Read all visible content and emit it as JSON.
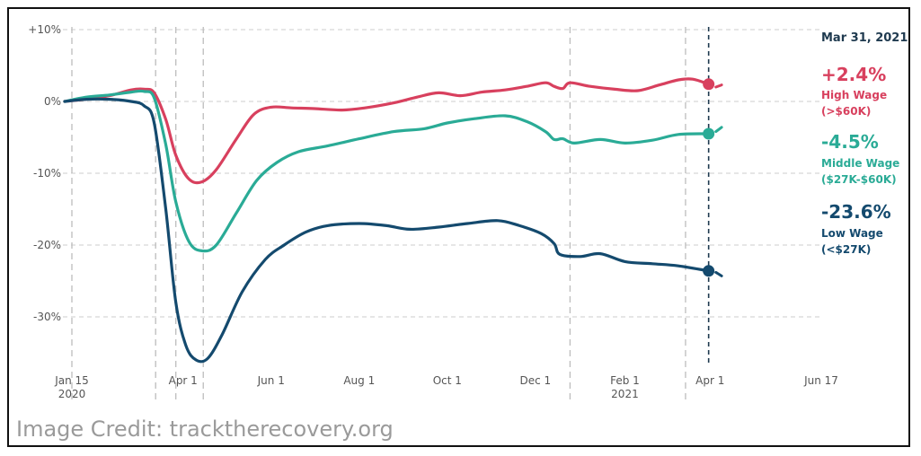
{
  "chart_data": {
    "type": "line",
    "y_unit": "% change in employment",
    "ylim": [
      -36.5,
      10
    ],
    "y_ticks": [
      "+10%",
      "0%",
      "-10%",
      "-20%",
      "-30%"
    ],
    "y_tick_values": [
      10,
      0,
      -10,
      -20,
      -30
    ],
    "x_ticks": [
      {
        "date": "2020-01-15",
        "label": "Jan 15",
        "label2": "2020"
      },
      {
        "date": "2020-04-01",
        "label": "Apr 1",
        "label2": ""
      },
      {
        "date": "2020-06-01",
        "label": "Jun 1",
        "label2": ""
      },
      {
        "date": "2020-08-01",
        "label": "Aug 1",
        "label2": ""
      },
      {
        "date": "2020-10-01",
        "label": "Oct 1",
        "label2": ""
      },
      {
        "date": "2020-12-01",
        "label": "Dec 1",
        "label2": ""
      },
      {
        "date": "2021-02-01",
        "label": "Feb 1",
        "label2": "2021"
      },
      {
        "date": "2021-04-01",
        "label": "Apr 1",
        "label2": ""
      },
      {
        "date": "2021-06-17",
        "label": "Jun 17",
        "label2": ""
      }
    ],
    "x_range": [
      "2020-01-15",
      "2021-06-17"
    ],
    "event_lines": [
      "2020-01-15",
      "2020-03-13",
      "2020-03-27",
      "2020-04-15",
      "2020-12-25",
      "2021-03-15"
    ],
    "marker_date": "2021-03-31",
    "marker_label": "Mar 31, 2021",
    "grid": true,
    "series": [
      {
        "name": "High Wage",
        "sub": "(>$60K)",
        "value_label": "+2.4%",
        "color": "#d8405e",
        "points": [
          [
            "2020-01-10",
            0
          ],
          [
            "2020-01-25",
            0.3
          ],
          [
            "2020-02-10",
            0.8
          ],
          [
            "2020-02-25",
            1.6
          ],
          [
            "2020-03-05",
            1.7
          ],
          [
            "2020-03-12",
            1.2
          ],
          [
            "2020-03-20",
            -2.5
          ],
          [
            "2020-03-27",
            -7.5
          ],
          [
            "2020-04-05",
            -10.8
          ],
          [
            "2020-04-14",
            -11.2
          ],
          [
            "2020-04-24",
            -9.5
          ],
          [
            "2020-05-08",
            -5.2
          ],
          [
            "2020-05-20",
            -1.8
          ],
          [
            "2020-06-01",
            -0.8
          ],
          [
            "2020-06-15",
            -0.9
          ],
          [
            "2020-07-01",
            -1.0
          ],
          [
            "2020-07-20",
            -1.2
          ],
          [
            "2020-08-05",
            -0.9
          ],
          [
            "2020-08-25",
            -0.2
          ],
          [
            "2020-09-10",
            0.6
          ],
          [
            "2020-09-25",
            1.2
          ],
          [
            "2020-10-10",
            0.8
          ],
          [
            "2020-10-25",
            1.3
          ],
          [
            "2020-11-10",
            1.6
          ],
          [
            "2020-11-25",
            2.1
          ],
          [
            "2020-12-08",
            2.6
          ],
          [
            "2020-12-14",
            2.1
          ],
          [
            "2020-12-20",
            1.8
          ],
          [
            "2020-12-25",
            2.6
          ],
          [
            "2021-01-08",
            2.1
          ],
          [
            "2021-01-25",
            1.7
          ],
          [
            "2021-02-10",
            1.5
          ],
          [
            "2021-02-25",
            2.3
          ],
          [
            "2021-03-10",
            3.0
          ],
          [
            "2021-03-20",
            3.1
          ],
          [
            "2021-03-31",
            2.4
          ]
        ],
        "tail": [
          [
            "2021-04-05",
            2.0
          ],
          [
            "2021-04-09",
            2.3
          ]
        ]
      },
      {
        "name": "Middle Wage",
        "sub": "($27K-$60K)",
        "value_label": "-4.5%",
        "color": "#2aab96",
        "points": [
          [
            "2020-01-10",
            0
          ],
          [
            "2020-01-25",
            0.6
          ],
          [
            "2020-02-10",
            0.9
          ],
          [
            "2020-02-25",
            1.3
          ],
          [
            "2020-03-05",
            1.4
          ],
          [
            "2020-03-12",
            0.5
          ],
          [
            "2020-03-20",
            -6.0
          ],
          [
            "2020-03-27",
            -14.0
          ],
          [
            "2020-04-05",
            -19.5
          ],
          [
            "2020-04-14",
            -20.8
          ],
          [
            "2020-04-24",
            -20.0
          ],
          [
            "2020-05-08",
            -15.5
          ],
          [
            "2020-05-22",
            -11.0
          ],
          [
            "2020-06-05",
            -8.5
          ],
          [
            "2020-06-20",
            -7.0
          ],
          [
            "2020-07-10",
            -6.2
          ],
          [
            "2020-08-01",
            -5.2
          ],
          [
            "2020-08-25",
            -4.2
          ],
          [
            "2020-09-15",
            -3.8
          ],
          [
            "2020-10-01",
            -3.0
          ],
          [
            "2020-10-20",
            -2.4
          ],
          [
            "2020-11-10",
            -2.0
          ],
          [
            "2020-11-25",
            -2.8
          ],
          [
            "2020-12-08",
            -4.2
          ],
          [
            "2020-12-14",
            -5.3
          ],
          [
            "2020-12-20",
            -5.2
          ],
          [
            "2020-12-28",
            -5.8
          ],
          [
            "2021-01-15",
            -5.3
          ],
          [
            "2021-02-01",
            -5.8
          ],
          [
            "2021-02-20",
            -5.4
          ],
          [
            "2021-03-10",
            -4.6
          ],
          [
            "2021-03-31",
            -4.5
          ]
        ],
        "tail": [
          [
            "2021-04-05",
            -4.2
          ],
          [
            "2021-04-09",
            -3.6
          ]
        ]
      },
      {
        "name": "Low Wage",
        "sub": "(<$27K)",
        "value_label": "-23.6%",
        "color": "#144a6e",
        "points": [
          [
            "2020-01-10",
            0
          ],
          [
            "2020-01-25",
            0.3
          ],
          [
            "2020-02-10",
            0.3
          ],
          [
            "2020-02-25",
            0.0
          ],
          [
            "2020-03-05",
            -0.6
          ],
          [
            "2020-03-12",
            -3.0
          ],
          [
            "2020-03-20",
            -15.0
          ],
          [
            "2020-03-27",
            -28.0
          ],
          [
            "2020-04-03",
            -34.0
          ],
          [
            "2020-04-10",
            -36.0
          ],
          [
            "2020-04-18",
            -35.8
          ],
          [
            "2020-04-28",
            -32.5
          ],
          [
            "2020-05-12",
            -26.5
          ],
          [
            "2020-05-28",
            -22.0
          ],
          [
            "2020-06-10",
            -20.0
          ],
          [
            "2020-06-25",
            -18.2
          ],
          [
            "2020-07-10",
            -17.3
          ],
          [
            "2020-08-01",
            -17.0
          ],
          [
            "2020-08-20",
            -17.3
          ],
          [
            "2020-09-05",
            -17.8
          ],
          [
            "2020-09-25",
            -17.5
          ],
          [
            "2020-10-15",
            -17.0
          ],
          [
            "2020-11-05",
            -16.6
          ],
          [
            "2020-11-20",
            -17.3
          ],
          [
            "2020-12-05",
            -18.4
          ],
          [
            "2020-12-14",
            -19.8
          ],
          [
            "2020-12-18",
            -21.3
          ],
          [
            "2021-01-01",
            -21.6
          ],
          [
            "2021-01-15",
            -21.2
          ],
          [
            "2021-02-01",
            -22.3
          ],
          [
            "2021-02-20",
            -22.6
          ],
          [
            "2021-03-10",
            -22.9
          ],
          [
            "2021-03-31",
            -23.6
          ]
        ],
        "tail": [
          [
            "2021-04-05",
            -23.8
          ],
          [
            "2021-04-09",
            -24.3
          ]
        ]
      }
    ]
  },
  "credit": "Image Credit: tracktherecovery.org"
}
